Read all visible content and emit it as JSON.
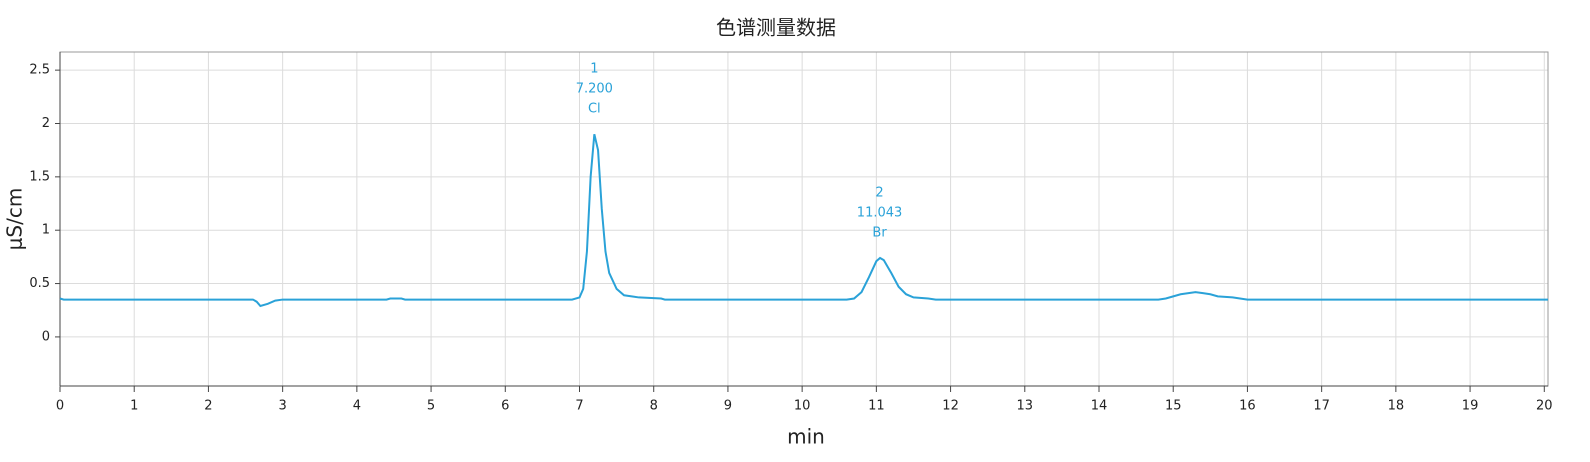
{
  "chart_data": {
    "type": "line",
    "title": "色谱测量数据",
    "x_label": "min",
    "y_label": "μS/cm",
    "xlim": [
      0,
      20.05
    ],
    "ylim": [
      -0.46,
      2.67
    ],
    "xticks": [
      0,
      1,
      2,
      3,
      4,
      5,
      6,
      7,
      8,
      9,
      10,
      11,
      12,
      13,
      14,
      15,
      16,
      17,
      18,
      19,
      20
    ],
    "yticks": [
      0,
      0.5,
      1,
      1.5,
      2,
      2.5
    ],
    "grid": true,
    "series": [
      {
        "color": "#2aa2d8",
        "x": [
          0,
          0.05,
          2.6,
          2.65,
          2.7,
          2.8,
          2.9,
          3.0,
          4.4,
          4.45,
          4.6,
          4.65,
          6.9,
          7.0,
          7.05,
          7.1,
          7.15,
          7.2,
          7.25,
          7.3,
          7.35,
          7.4,
          7.5,
          7.6,
          7.8,
          8.1,
          8.15,
          10.6,
          10.7,
          10.8,
          10.9,
          11.0,
          11.05,
          11.1,
          11.2,
          11.3,
          11.4,
          11.5,
          11.7,
          11.8,
          14.8,
          14.9,
          15.0,
          15.1,
          15.3,
          15.4,
          15.5,
          15.6,
          15.8,
          15.9,
          16.0,
          20.05
        ],
        "values": [
          0.36,
          0.35,
          0.35,
          0.33,
          0.29,
          0.31,
          0.34,
          0.35,
          0.35,
          0.36,
          0.36,
          0.35,
          0.35,
          0.37,
          0.45,
          0.8,
          1.5,
          1.9,
          1.75,
          1.2,
          0.8,
          0.6,
          0.45,
          0.39,
          0.37,
          0.36,
          0.35,
          0.35,
          0.36,
          0.42,
          0.56,
          0.71,
          0.74,
          0.72,
          0.6,
          0.47,
          0.4,
          0.37,
          0.36,
          0.35,
          0.35,
          0.36,
          0.38,
          0.4,
          0.42,
          0.41,
          0.4,
          0.38,
          0.37,
          0.36,
          0.35,
          0.35
        ]
      }
    ],
    "annotations": [
      {
        "x": 7.2,
        "y": 1.9,
        "lines": [
          "1",
          "7.200",
          "Cl"
        ]
      },
      {
        "x": 11.043,
        "y": 0.74,
        "lines": [
          "2",
          "11.043",
          "Br"
        ]
      }
    ]
  }
}
